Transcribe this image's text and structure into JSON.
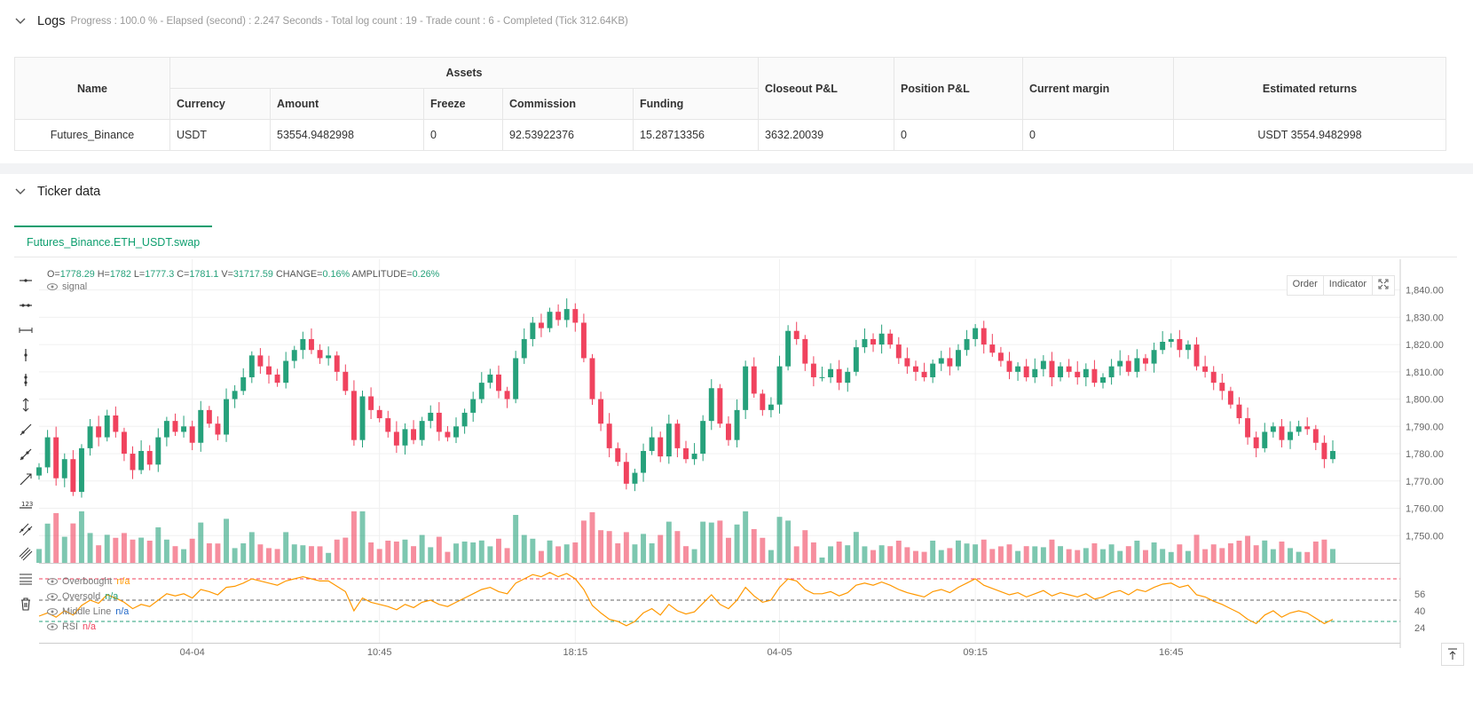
{
  "logs": {
    "title": "Logs",
    "meta": "Progress : 100.0 % - Elapsed (second) : 2.247  Seconds - Total log count : 19 - Trade count : 6 - Completed (Tick 312.64KB)"
  },
  "assets_table": {
    "headers": {
      "name": "Name",
      "assets": "Assets",
      "currency": "Currency",
      "amount": "Amount",
      "freeze": "Freeze",
      "commission": "Commission",
      "funding": "Funding",
      "closeout_pl": "Closeout P&L",
      "position_pl": "Position P&L",
      "current_margin": "Current margin",
      "estimated_returns": "Estimated returns"
    },
    "row": {
      "name": "Futures_Binance",
      "currency": "USDT",
      "amount": "53554.9482998",
      "freeze": "0",
      "commission": "92.53922376",
      "funding": "15.28713356",
      "closeout_pl": "3632.20039",
      "position_pl": "0",
      "current_margin": "0",
      "estimated_returns": "USDT 3554.9482998"
    }
  },
  "ticker": {
    "title": "Ticker data",
    "tab_label": "Futures_Binance.ETH_USDT.swap"
  },
  "ohlc": {
    "o_label": "O=",
    "o": "1778.29",
    "h_label": "H=",
    "h": "1782",
    "l_label": "L=",
    "l": "1777.3",
    "c_label": "C=",
    "c": "1781.1",
    "v_label": "V=",
    "v": "31717.59",
    "change_label": "CHANGE=",
    "change": "0.16%",
    "amp_label": "AMPLITUDE=",
    "amp": "0.26%"
  },
  "legend": {
    "signal": "signal",
    "overbought": "Overbought",
    "overbought_val": "n/a",
    "oversold": "Oversold",
    "oversold_val": "n/a",
    "middle": "Middle Line",
    "middle_val": "n/a",
    "rsi": "RSI",
    "rsi_val": "n/a"
  },
  "buttons": {
    "order": "Order",
    "indicator": "Indicator"
  },
  "colors": {
    "up": "#26a17b",
    "down": "#f0435e",
    "rsi": "#ff9800",
    "accent": "#0d9e6e"
  },
  "chart_data": {
    "type": "candlestick",
    "price_axis": {
      "min": 1740,
      "max": 1848,
      "ticks": [
        "1,840.00",
        "1,830.00",
        "1,820.00",
        "1,810.00",
        "1,800.00",
        "1,790.00",
        "1,780.00",
        "1,770.00",
        "1,760.00",
        "1,750.00"
      ],
      "tick_values": [
        1840,
        1830,
        1820,
        1810,
        1800,
        1790,
        1780,
        1770,
        1760,
        1750
      ]
    },
    "rsi_axis": {
      "min": 10,
      "max": 80,
      "ticks": [
        "56",
        "40",
        "24"
      ],
      "tick_values": [
        56,
        40,
        24
      ],
      "overbought": 70,
      "middle": 50,
      "oversold": 30
    },
    "time_labels": [
      "04-04",
      "10:45",
      "18:15",
      "04-05",
      "09:15",
      "16:45"
    ],
    "time_label_index": [
      18,
      40,
      63,
      87,
      110,
      133
    ],
    "bar_count": 153,
    "close": [
      1775,
      1786,
      1771,
      1778,
      1766,
      1782,
      1790,
      1786,
      1794,
      1788,
      1780,
      1774,
      1781,
      1776,
      1786,
      1792,
      1788,
      1790,
      1784,
      1796,
      1791,
      1787,
      1800,
      1803,
      1808,
      1816,
      1812,
      1809,
      1806,
      1814,
      1818,
      1822,
      1818,
      1815,
      1816,
      1810,
      1803,
      1785,
      1801,
      1796,
      1793,
      1788,
      1783,
      1789,
      1785,
      1792,
      1795,
      1788,
      1786,
      1790,
      1795,
      1800,
      1806,
      1809,
      1803,
      1800,
      1815,
      1822,
      1828,
      1826,
      1832,
      1829,
      1833,
      1828,
      1815,
      1800,
      1791,
      1782,
      1777,
      1769,
      1773,
      1781,
      1786,
      1779,
      1791,
      1782,
      1778,
      1780,
      1792,
      1804,
      1791,
      1785,
      1796,
      1812,
      1802,
      1796,
      1798,
      1812,
      1825,
      1822,
      1813,
      1808,
      1808,
      1811,
      1806,
      1810,
      1819,
      1822,
      1820,
      1824,
      1820,
      1815,
      1812,
      1810,
      1808,
      1813,
      1815,
      1812,
      1818,
      1822,
      1826,
      1820,
      1817,
      1814,
      1810,
      1812,
      1808,
      1811,
      1814,
      1808,
      1812,
      1810,
      1808,
      1811,
      1806,
      1808,
      1812,
      1814,
      1810,
      1815,
      1813,
      1818,
      1821,
      1822,
      1818,
      1820,
      1812,
      1810,
      1806,
      1803,
      1798,
      1793,
      1786,
      1782,
      1788,
      1790,
      1785,
      1788,
      1790,
      1789,
      1784,
      1778,
      1781
    ],
    "rsi": [
      35,
      38,
      34,
      40,
      36,
      45,
      50,
      47,
      55,
      52,
      48,
      42,
      46,
      44,
      50,
      56,
      54,
      56,
      52,
      60,
      58,
      55,
      62,
      63,
      66,
      70,
      68,
      66,
      64,
      68,
      70,
      72,
      70,
      68,
      68,
      63,
      58,
      40,
      52,
      48,
      46,
      44,
      41,
      46,
      43,
      48,
      50,
      46,
      44,
      48,
      52,
      56,
      60,
      62,
      58,
      56,
      66,
      70,
      74,
      72,
      76,
      72,
      75,
      70,
      60,
      45,
      38,
      32,
      30,
      26,
      30,
      38,
      42,
      36,
      46,
      40,
      37,
      39,
      47,
      55,
      46,
      42,
      50,
      62,
      54,
      48,
      50,
      62,
      70,
      68,
      60,
      56,
      56,
      58,
      54,
      57,
      64,
      66,
      64,
      67,
      64,
      60,
      57,
      55,
      53,
      58,
      60,
      57,
      62,
      66,
      70,
      64,
      61,
      58,
      55,
      57,
      53,
      56,
      59,
      54,
      57,
      55,
      53,
      56,
      51,
      53,
      57,
      59,
      55,
      60,
      58,
      62,
      65,
      66,
      62,
      64,
      55,
      53,
      49,
      46,
      42,
      38,
      32,
      28,
      36,
      40,
      34,
      38,
      40,
      38,
      33,
      28,
      32
    ]
  }
}
